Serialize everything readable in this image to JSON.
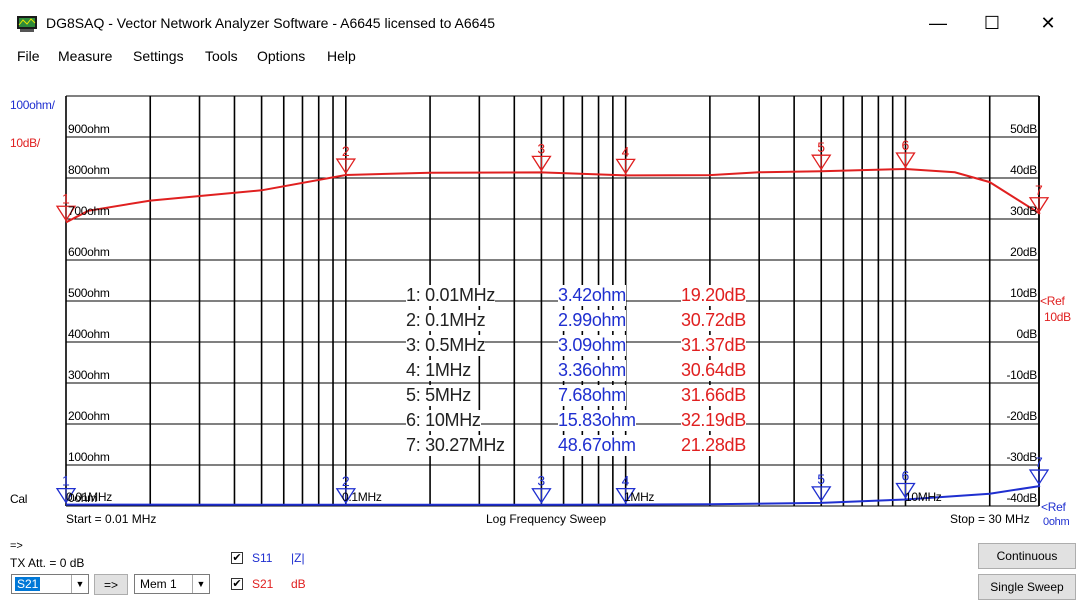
{
  "window": {
    "title": "DG8SAQ  -  Vector Network Analyzer Software  - A6645 licensed to A6645",
    "minimize": "—",
    "maximize": "☐",
    "close": "✕"
  },
  "menu": [
    "File",
    "Measure",
    "Settings",
    "Tools",
    "Options",
    "Help"
  ],
  "scales": {
    "left_scale": "100ohm/",
    "right_scale": "10dB/",
    "left_ticks": [
      "900ohm",
      "800ohm",
      "700ohm",
      "600ohm",
      "500ohm",
      "400ohm",
      "300ohm",
      "200ohm",
      "100ohm",
      "0ohm"
    ],
    "right_ticks": [
      "50dB",
      "40dB",
      "30dB",
      "20dB",
      "10dB",
      "0dB",
      "-10dB",
      "-20dB",
      "-30dB",
      "-40dB"
    ],
    "ref_red": "<Ref",
    "ref_red_val": "10dB",
    "ref_blue": "<Ref",
    "ref_blue_val": "0ohm",
    "freq_labels": [
      "0.01MHz",
      "0.1MHz",
      "1MHz",
      "10MHz"
    ],
    "cal": "Cal"
  },
  "sweep": {
    "start": "Start = 0.01 MHz",
    "mode": "Log Frequency Sweep",
    "stop": "Stop = 30 MHz"
  },
  "markers": [
    {
      "num": "1",
      "freq_mhz": 0.01,
      "label": "1: 0.01MHz",
      "ohm": "3.42ohm",
      "db": "19.20dB"
    },
    {
      "num": "2",
      "freq_mhz": 0.1,
      "label": "2: 0.1MHz",
      "ohm": "2.99ohm",
      "db": "30.72dB"
    },
    {
      "num": "3",
      "freq_mhz": 0.5,
      "label": "3: 0.5MHz",
      "ohm": "3.09ohm",
      "db": "31.37dB"
    },
    {
      "num": "4",
      "freq_mhz": 1,
      "label": "4: 1MHz",
      "ohm": "3.36ohm",
      "db": "30.64dB"
    },
    {
      "num": "5",
      "freq_mhz": 5,
      "label": "5: 5MHz",
      "ohm": "7.68ohm",
      "db": "31.66dB"
    },
    {
      "num": "6",
      "freq_mhz": 10,
      "label": "6: 10MHz",
      "ohm": "15.83ohm",
      "db": "32.19dB"
    },
    {
      "num": "7",
      "freq_mhz": 30.27,
      "label": "7: 30.27MHz",
      "ohm": "48.67ohm",
      "db": "21.28dB"
    }
  ],
  "chart_data": {
    "type": "line",
    "x_scale": "log",
    "xlim": [
      0.01,
      30
    ],
    "xlabel": "Log Frequency Sweep",
    "grid": true,
    "series": [
      {
        "name": "S11 |Z|",
        "color": "#1f2fd0",
        "unit": "ohm",
        "ylim": [
          0,
          1000
        ],
        "x": [
          0.01,
          0.1,
          0.5,
          1,
          2,
          5,
          10,
          20,
          30.27
        ],
        "y": [
          3.42,
          2.99,
          3.09,
          3.36,
          4.5,
          7.68,
          15.83,
          30,
          48.67
        ]
      },
      {
        "name": "S21 dB",
        "color": "#e02020",
        "unit": "dB",
        "ylim": [
          -50,
          50
        ],
        "x": [
          0.01,
          0.012,
          0.02,
          0.05,
          0.1,
          0.2,
          0.5,
          1,
          2,
          3,
          5,
          10,
          15,
          20,
          30.27
        ],
        "y": [
          19.2,
          22,
          24.5,
          27,
          30.72,
          31.3,
          31.37,
          30.64,
          30.7,
          31.4,
          31.66,
          32.19,
          31.4,
          29,
          21.28
        ]
      }
    ]
  },
  "controls": {
    "arrow_label": "=>",
    "tx_att": "TX Att.  = 0 dB",
    "param_select": "S21",
    "transfer_btn": "=>",
    "mem_select": "Mem 1",
    "s11_check": "✔",
    "s11_label": "S11",
    "s11_format": "|Z|",
    "s21_check": "✔",
    "s21_label": "S21",
    "s21_format": "dB",
    "continuous": "Continuous",
    "single_sweep": "Single Sweep"
  }
}
